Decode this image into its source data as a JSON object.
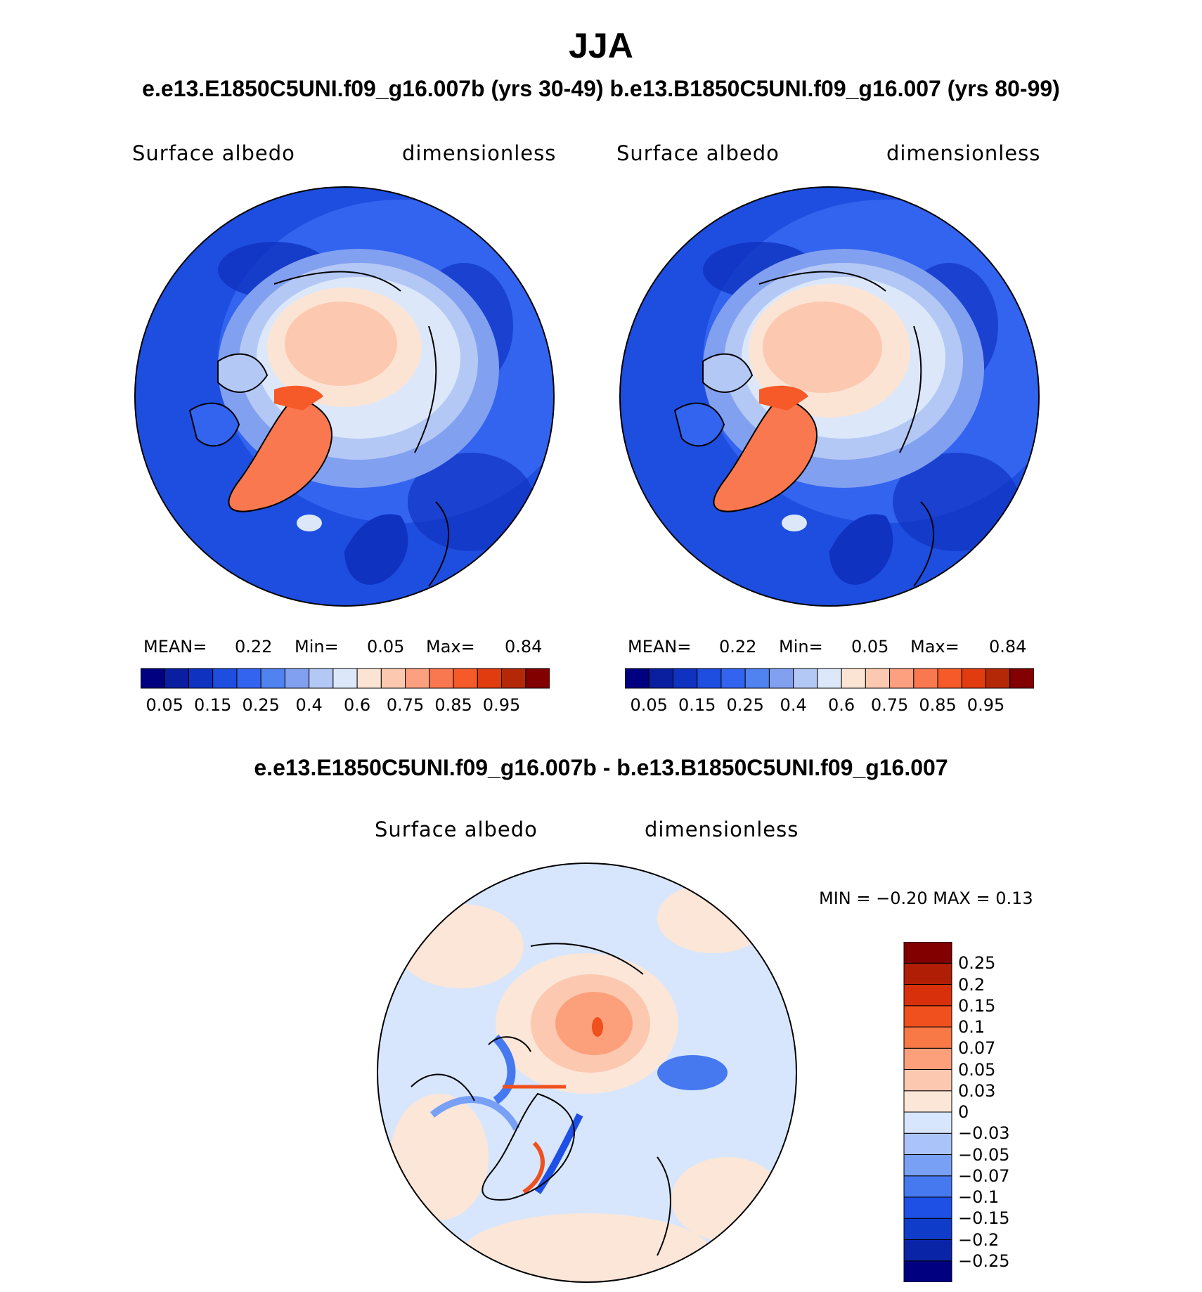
{
  "title": "JJA",
  "subtitle_top": "e.e13.E1850C5UNI.f09_g16.007b (yrs 30-49)  b.e13.B1850C5UNI.f09_g16.007 (yrs 80-99)",
  "subtitle_diff": "e.e13.E1850C5UNI.f09_g16.007b - b.e13.B1850C5UNI.f09_g16.007",
  "panels": [
    {
      "variable": "Surface albedo",
      "units": "dimensionless",
      "mean_label": "MEAN=",
      "mean_value": "0.22",
      "min_label": "Min=",
      "min_value": "0.05",
      "max_label": "Max=",
      "max_value": "0.84"
    },
    {
      "variable": "Surface albedo",
      "units": "dimensionless",
      "mean_label": "MEAN=",
      "mean_value": "0.22",
      "min_label": "Min=",
      "min_value": "0.05",
      "max_label": "Max=",
      "max_value": "0.84"
    }
  ],
  "diff_panel": {
    "variable": "Surface albedo",
    "units": "dimensionless",
    "minmax_text": "MIN =   −0.20  MAX =     0.13"
  },
  "colorbar_abs": {
    "colors": [
      "#000080",
      "#0a1ea0",
      "#0f32c0",
      "#1e4ee0",
      "#3264f0",
      "#5082f0",
      "#82a0f0",
      "#b4c8f5",
      "#dce8fa",
      "#fce4d4",
      "#fcc8b0",
      "#fca080",
      "#fa7850",
      "#f55a28",
      "#e03c10",
      "#b42808",
      "#820000"
    ],
    "tick_labels": [
      "0.05",
      "0.15",
      "0.25",
      "0.4",
      "0.6",
      "0.75",
      "0.85",
      "0.95"
    ]
  },
  "colorbar_diff": {
    "colors": [
      "#000080",
      "#0a24a8",
      "#0f3cc8",
      "#1e50e6",
      "#4678f0",
      "#78a0f5",
      "#aac4fa",
      "#d7e6fc",
      "#fbe6d8",
      "#fcc8b0",
      "#fca07c",
      "#f87846",
      "#f0501e",
      "#d8300a",
      "#b01e05",
      "#820000"
    ],
    "tick_labels": [
      "−0.25",
      "−0.2",
      "−0.15",
      "−0.1",
      "−0.07",
      "−0.05",
      "−0.03",
      "0",
      "0.03",
      "0.05",
      "0.07",
      "0.1",
      "0.15",
      "0.2",
      "0.25"
    ]
  }
}
